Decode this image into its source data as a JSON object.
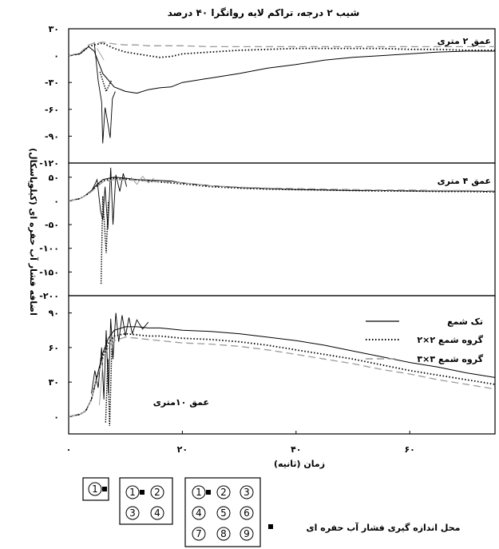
{
  "chart_data": {
    "type": "line",
    "title": "شیب ۲ درجه، تراکم لایه روانگرا ۴۰ درصد",
    "xlabel": "زمان (ثانیه)",
    "ylabel": "اضافه فشار آب حفره ای (کیلوپاسکال)",
    "xlim": [
      0,
      75
    ],
    "x_ticks": [
      "۰",
      "۲۰",
      "۴۰",
      "۶۰"
    ],
    "x_tick_values": [
      0,
      20,
      40,
      60
    ],
    "legend": {
      "placement": "inside-bottom-panel-right",
      "entries": [
        "تک شمع",
        "گروه شمع ۲×۲",
        "گروه شمع ۳×۳"
      ]
    },
    "series_styles": [
      {
        "style": "solid",
        "color": "#000000"
      },
      {
        "style": "dotted",
        "color": "#000000"
      },
      {
        "style": "dashed",
        "color": "#9a9a9a"
      }
    ],
    "panels": [
      {
        "label": "عمق ۲ متری",
        "ylim": [
          -120,
          30
        ],
        "y_ticks": [
          "۳۰",
          "۰",
          "-۳۰",
          "-۶۰",
          "-۹۰",
          "-۱۲۰"
        ],
        "y_tick_values": [
          30,
          0,
          -30,
          -60,
          -90,
          -120
        ],
        "spikes": [
          [
            {
              "x": 4.5,
              "y": 15
            },
            {
              "x": 5.2,
              "y": -28
            },
            {
              "x": 5.8,
              "y": -52
            },
            {
              "x": 6.0,
              "y": -98
            },
            {
              "x": 6.4,
              "y": -58
            },
            {
              "x": 6.8,
              "y": -72
            },
            {
              "x": 7.3,
              "y": -92
            },
            {
              "x": 7.7,
              "y": -48
            },
            {
              "x": 8.2,
              "y": -40
            }
          ],
          [
            {
              "x": 5.5,
              "y": -18
            },
            {
              "x": 6.6,
              "y": -40
            },
            {
              "x": 7.5,
              "y": -28
            }
          ],
          [
            {
              "x": 5.0,
              "y": 8
            },
            {
              "x": 6.2,
              "y": -5
            }
          ]
        ],
        "series": [
          {
            "name": "تک شمع",
            "x": [
              0,
              2,
              3.5,
              4.5,
              6,
              8,
              10,
              12,
              14,
              16,
              18,
              20,
              25,
              30,
              35,
              40,
              45,
              50,
              55,
              60,
              65,
              70,
              75
            ],
            "y": [
              0,
              2,
              10,
              5,
              -20,
              -35,
              -40,
              -42,
              -38,
              -36,
              -35,
              -30,
              -25,
              -20,
              -14,
              -10,
              -5,
              -2,
              0,
              2,
              4,
              5,
              5
            ]
          },
          {
            "name": "گروه شمع ۲×۲",
            "x": [
              0,
              2,
              3.5,
              4.5,
              6,
              8,
              10,
              12,
              14,
              16,
              18,
              20,
              25,
              30,
              35,
              40,
              45,
              50,
              55,
              60,
              65,
              70,
              75
            ],
            "y": [
              0,
              2,
              10,
              12,
              14,
              8,
              4,
              2,
              0,
              -2,
              -1,
              2,
              4,
              6,
              7,
              8,
              8,
              8,
              8,
              7,
              7,
              6,
              6
            ]
          },
          {
            "name": "گروه شمع ۳×۳",
            "x": [
              0,
              2,
              3.5,
              4.5,
              6,
              8,
              10,
              12,
              14,
              16,
              18,
              20,
              25,
              30,
              35,
              40,
              45,
              50,
              55,
              60,
              65,
              70,
              75
            ],
            "y": [
              0,
              3,
              12,
              14,
              15,
              13,
              12,
              12,
              11,
              11,
              11,
              11,
              10,
              10,
              10,
              10,
              10,
              10,
              10,
              10,
              10,
              10,
              10
            ]
          }
        ]
      },
      {
        "label": "عمق ۴ متری",
        "ylim": [
          -200,
          80
        ],
        "y_ticks": [
          "۵۰",
          "۰",
          "-۵۰",
          "-۱۰۰",
          "-۱۵۰",
          "-۲۰۰"
        ],
        "y_tick_values": [
          50,
          0,
          -50,
          -100,
          -150,
          -200
        ],
        "spikes": [
          [
            {
              "x": 4.0,
              "y": 20
            },
            {
              "x": 5.0,
              "y": 45
            },
            {
              "x": 5.6,
              "y": -20
            },
            {
              "x": 6.0,
              "y": -40
            },
            {
              "x": 6.4,
              "y": 30
            },
            {
              "x": 6.9,
              "y": -60
            },
            {
              "x": 7.4,
              "y": 70
            },
            {
              "x": 7.8,
              "y": -50
            },
            {
              "x": 8.3,
              "y": 55
            },
            {
              "x": 9.0,
              "y": 20
            },
            {
              "x": 9.6,
              "y": 58
            },
            {
              "x": 10.2,
              "y": 30
            }
          ],
          [
            {
              "x": 5.7,
              "y": -175
            },
            {
              "x": 6.0,
              "y": 10
            },
            {
              "x": 6.6,
              "y": -110
            },
            {
              "x": 7.0,
              "y": 0
            }
          ],
          [
            {
              "x": 11,
              "y": 50
            },
            {
              "x": 12,
              "y": 35
            },
            {
              "x": 13,
              "y": 52
            },
            {
              "x": 14,
              "y": 38
            },
            {
              "x": 15,
              "y": 48
            }
          ]
        ],
        "series": [
          {
            "name": "تک شمع",
            "x": [
              0,
              2,
              3,
              4,
              5,
              6,
              8,
              10,
              12,
              14,
              16,
              18,
              20,
              25,
              30,
              35,
              40,
              45,
              50,
              55,
              60,
              65,
              70,
              75
            ],
            "y": [
              0,
              5,
              12,
              22,
              35,
              45,
              50,
              48,
              45,
              44,
              43,
              42,
              38,
              32,
              28,
              26,
              24,
              23,
              22,
              22,
              21,
              21,
              21,
              20
            ]
          },
          {
            "name": "گروه شمع ۲×۲",
            "x": [
              0,
              2,
              3,
              4,
              5,
              6,
              8,
              10,
              12,
              14,
              16,
              18,
              20,
              25,
              30,
              35,
              40,
              45,
              50,
              55,
              60,
              65,
              70,
              75
            ],
            "y": [
              0,
              5,
              12,
              20,
              32,
              42,
              48,
              46,
              44,
              42,
              40,
              38,
              36,
              30,
              27,
              25,
              24,
              23,
              22,
              21,
              21,
              20,
              20,
              19
            ]
          },
          {
            "name": "گروه شمع ۳×۳",
            "x": [
              0,
              2,
              3,
              4,
              5,
              6,
              8,
              10,
              12,
              14,
              16,
              18,
              20,
              25,
              30,
              35,
              40,
              45,
              50,
              55,
              60,
              65,
              70,
              75
            ],
            "y": [
              0,
              5,
              12,
              20,
              30,
              40,
              45,
              45,
              43,
              42,
              40,
              40,
              38,
              32,
              29,
              27,
              26,
              25,
              24,
              23,
              23,
              22,
              22,
              21
            ]
          }
        ]
      },
      {
        "label": "عمق ۱۰متری",
        "ylim": [
          -15,
          105
        ],
        "y_ticks": [
          "۹۰",
          "۶۰",
          "۳۰",
          "۰"
        ],
        "y_tick_values": [
          90,
          60,
          30,
          0
        ],
        "spikes": [
          [
            {
              "x": 4.0,
              "y": 20
            },
            {
              "x": 4.6,
              "y": 40
            },
            {
              "x": 5.2,
              "y": 25
            },
            {
              "x": 5.8,
              "y": 60
            },
            {
              "x": 6.2,
              "y": 15
            },
            {
              "x": 6.6,
              "y": 75
            },
            {
              "x": 7.0,
              "y": 20
            },
            {
              "x": 7.4,
              "y": 85
            },
            {
              "x": 7.8,
              "y": 50
            },
            {
              "x": 8.3,
              "y": 90
            },
            {
              "x": 8.8,
              "y": 65
            },
            {
              "x": 9.4,
              "y": 88
            },
            {
              "x": 10,
              "y": 70
            },
            {
              "x": 10.6,
              "y": 86
            },
            {
              "x": 11.2,
              "y": 72
            },
            {
              "x": 12,
              "y": 84
            },
            {
              "x": 13,
              "y": 76
            },
            {
              "x": 14,
              "y": 82
            }
          ],
          [
            {
              "x": 6.5,
              "y": -5
            },
            {
              "x": 6.9,
              "y": 50
            },
            {
              "x": 7.2,
              "y": -8
            },
            {
              "x": 7.6,
              "y": 60
            }
          ],
          [
            {
              "x": 5.4,
              "y": 10
            },
            {
              "x": 6.0,
              "y": 45
            }
          ]
        ],
        "series": [
          {
            "name": "تک شمع",
            "x": [
              0,
              2,
              3,
              4,
              5,
              6,
              7,
              8,
              10,
              12,
              14,
              16,
              18,
              20,
              25,
              30,
              35,
              40,
              45,
              50,
              55,
              60,
              65,
              70,
              75
            ],
            "y": [
              0,
              2,
              5,
              15,
              35,
              55,
              68,
              75,
              78,
              78,
              77,
              77,
              76,
              75,
              74,
              72,
              69,
              66,
              62,
              57,
              52,
              47,
              43,
              38,
              34
            ]
          },
          {
            "name": "گروه شمع ۲×۲",
            "x": [
              0,
              2,
              3,
              4,
              5,
              6,
              7,
              8,
              10,
              12,
              14,
              16,
              18,
              20,
              25,
              30,
              35,
              40,
              45,
              50,
              55,
              60,
              65,
              70,
              75
            ],
            "y": [
              0,
              2,
              5,
              15,
              35,
              52,
              64,
              70,
              72,
              71,
              70,
              70,
              69,
              68,
              67,
              65,
              62,
              58,
              54,
              50,
              45,
              40,
              36,
              32,
              28
            ]
          },
          {
            "name": "گروه شمع ۳×۳",
            "x": [
              0,
              2,
              3,
              4,
              5,
              6,
              7,
              8,
              10,
              12,
              14,
              16,
              18,
              20,
              25,
              30,
              35,
              40,
              45,
              50,
              55,
              60,
              65,
              70,
              75
            ],
            "y": [
              0,
              2,
              5,
              15,
              33,
              50,
              60,
              66,
              69,
              68,
              67,
              66,
              65,
              64,
              63,
              61,
              58,
              54,
              50,
              46,
              41,
              37,
              32,
              28,
              24
            ]
          }
        ]
      }
    ]
  },
  "pile_layout": {
    "single": [
      "1"
    ],
    "group_2x2": [
      "1",
      "2",
      "3",
      "4"
    ],
    "group_3x3": [
      "1",
      "2",
      "3",
      "4",
      "5",
      "6",
      "7",
      "8",
      "9"
    ],
    "caption": "محل اندازه گیری فشار آب حفره ای"
  }
}
